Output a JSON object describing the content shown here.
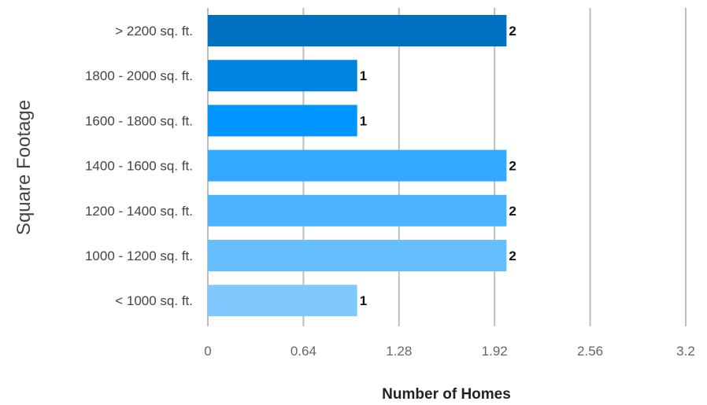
{
  "chart_data": {
    "type": "bar",
    "orientation": "horizontal",
    "title": "",
    "xlabel": "Number of Homes",
    "ylabel": "Square Footage",
    "categories": [
      "> 2200 sq. ft.",
      "1800 - 2000 sq. ft.",
      "1600 - 1800 sq. ft.",
      "1400 - 1600 sq. ft.",
      "1200 - 1400 sq. ft.",
      "1000 - 1200 sq. ft.",
      "< 1000 sq. ft."
    ],
    "values": [
      2,
      1,
      1,
      2,
      2,
      2,
      1
    ],
    "data_labels": [
      "2",
      "1",
      "1",
      "2",
      "2",
      "2",
      "1"
    ],
    "bar_colors": [
      "#0070C0",
      "#0084E0",
      "#0096FF",
      "#33A8FF",
      "#4DB3FF",
      "#66BEFF",
      "#80C9FF"
    ],
    "xlim": [
      0,
      3.2
    ],
    "x_ticks": [
      0,
      0.64,
      1.28,
      1.92,
      2.56,
      3.2
    ],
    "x_tick_labels": [
      "0",
      "0.64",
      "1.28",
      "1.92",
      "2.56",
      "3.2"
    ],
    "grid": true,
    "legend": "none"
  }
}
